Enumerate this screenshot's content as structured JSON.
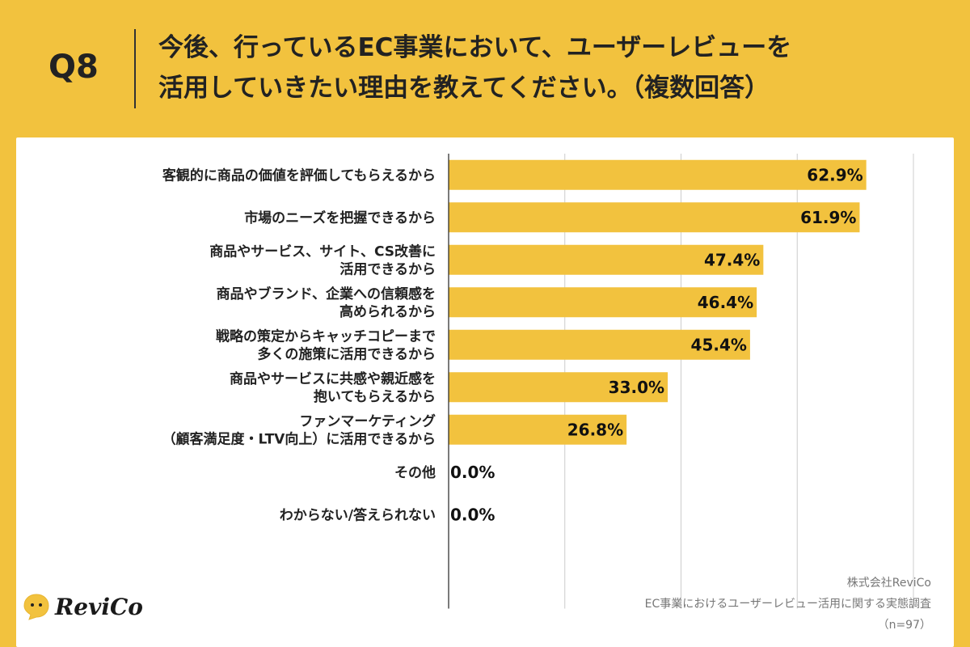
{
  "header": {
    "question": "Q8",
    "title_line1": "今後、行っているEC事業において、ユーザーレビューを",
    "title_line2": "活用していきたい理由を教えてください。（複数回答）"
  },
  "chart_data": {
    "type": "bar",
    "orientation": "horizontal",
    "categories": [
      [
        "客観的に商品の価値を評価してもらえるから"
      ],
      [
        "市場のニーズを把握できるから"
      ],
      [
        "商品やサービス、サイト、CS改善に",
        "活用できるから"
      ],
      [
        "商品やブランド、企業への信頼感を",
        "高められるから"
      ],
      [
        "戦略の策定からキャッチコピーまで",
        "多くの施策に活用できるから"
      ],
      [
        "商品やサービスに共感や親近感を",
        "抱いてもらえるから"
      ],
      [
        "ファンマーケティング",
        "（顧客満足度・LTV向上）に活用できるから"
      ],
      [
        "その他"
      ],
      [
        "わからない/答えられない"
      ]
    ],
    "values": [
      62.9,
      61.9,
      47.4,
      46.4,
      45.4,
      33.0,
      26.8,
      0.0,
      0.0
    ],
    "value_labels": [
      "62.9%",
      "61.9%",
      "47.4%",
      "46.4%",
      "45.4%",
      "33.0%",
      "26.8%",
      "0.0%",
      "0.0%"
    ],
    "xlim": [
      0,
      70
    ],
    "gridlines": [
      17.5,
      35,
      52.5,
      70
    ],
    "grid": true,
    "bar_color": "#F2C23E"
  },
  "logo": {
    "text": "ReviCo",
    "icon": "chat-bubble-face-icon"
  },
  "footer": {
    "company": "株式会社ReviCo",
    "survey": "EC事業におけるユーザーレビュー活用に関する実態調査",
    "sample": "（n=97）"
  },
  "colors": {
    "background": "#F2C23E",
    "panel": "#FFFFFF",
    "bar": "#F2C23E",
    "text": "#222222"
  }
}
